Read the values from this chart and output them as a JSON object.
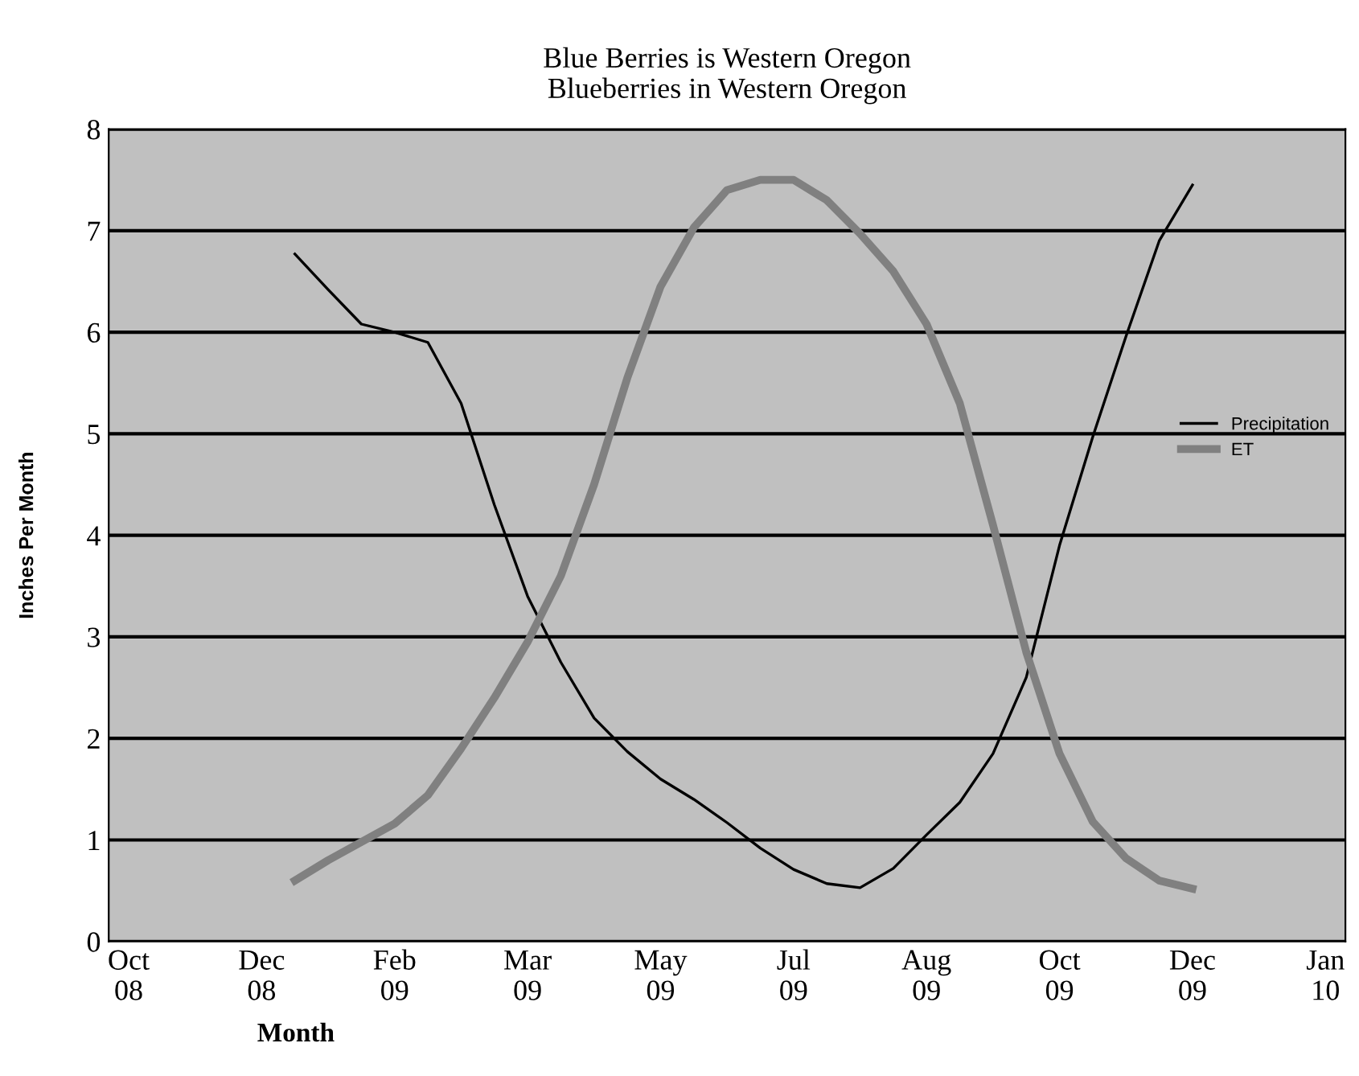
{
  "chart_data": {
    "type": "line",
    "title": "Blue Berries is Western Oregon",
    "subtitle": "Blueberries in Western Oregon",
    "xlabel": "Month",
    "ylabel": "Inches Per Month",
    "categories": [
      "Oct\n08",
      null,
      null,
      null,
      "Dec\n08",
      null,
      null,
      null,
      "Feb\n09",
      null,
      null,
      null,
      "Mar\n09",
      null,
      null,
      null,
      "May\n09",
      null,
      null,
      null,
      "Jul\n09",
      null,
      null,
      null,
      "Aug\n09",
      null,
      null,
      null,
      "Oct\n09",
      null,
      null,
      null,
      "Dec\n09",
      null,
      null,
      null,
      "Jan\n10"
    ],
    "ylim": [
      0,
      8
    ],
    "yticks": [
      0,
      1,
      2,
      3,
      4,
      5,
      6,
      7,
      8
    ],
    "grid": "y",
    "legend": "right",
    "marker": "none",
    "series": [
      {
        "name": "Precipitation",
        "color": "#000000",
        "values": [
          null,
          null,
          null,
          null,
          null,
          6.77,
          6.42,
          6.08,
          6.0,
          5.9,
          5.3,
          4.3,
          3.4,
          2.75,
          2.2,
          1.87,
          1.6,
          1.4,
          1.17,
          0.92,
          0.71,
          0.57,
          0.53,
          0.72,
          1.05,
          1.37,
          1.85,
          2.6,
          3.9,
          4.97,
          5.96,
          6.9,
          7.45,
          null,
          null,
          null,
          null
        ]
      },
      {
        "name": "ET",
        "color": "#808080",
        "values": [
          null,
          null,
          null,
          null,
          null,
          0.6,
          0.8,
          0.98,
          1.16,
          1.44,
          1.9,
          2.4,
          2.95,
          3.6,
          4.5,
          5.55,
          6.45,
          7.03,
          7.4,
          7.5,
          7.5,
          7.3,
          6.97,
          6.6,
          6.08,
          5.3,
          4.1,
          2.85,
          1.85,
          1.18,
          0.82,
          0.6,
          0.52,
          null,
          null,
          null,
          null
        ]
      }
    ]
  }
}
